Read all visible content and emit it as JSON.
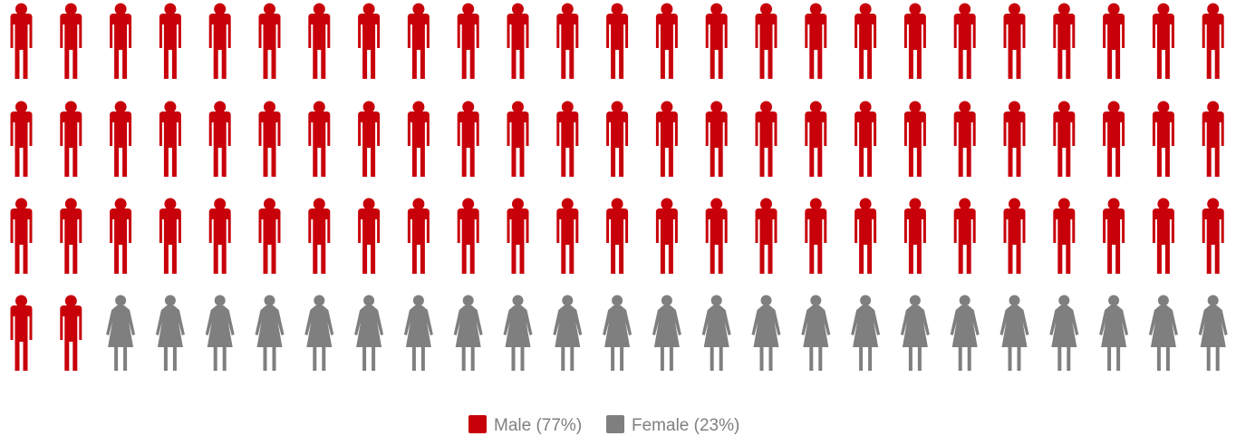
{
  "chart_data": {
    "type": "pictograph",
    "total_icons": 100,
    "series": [
      {
        "name": "Male",
        "value": 77,
        "color": "#c8000a",
        "icon": "male-person-icon"
      },
      {
        "name": "Female",
        "value": 23,
        "color": "#7f7f7f",
        "icon": "female-person-icon"
      }
    ],
    "legend": {
      "placement": "bottom-center",
      "items": [
        {
          "label": "Male (77%)",
          "color": "#c8000a"
        },
        {
          "label": "Female (23%)",
          "color": "#7f7f7f"
        }
      ]
    },
    "title": "",
    "grid": false
  }
}
